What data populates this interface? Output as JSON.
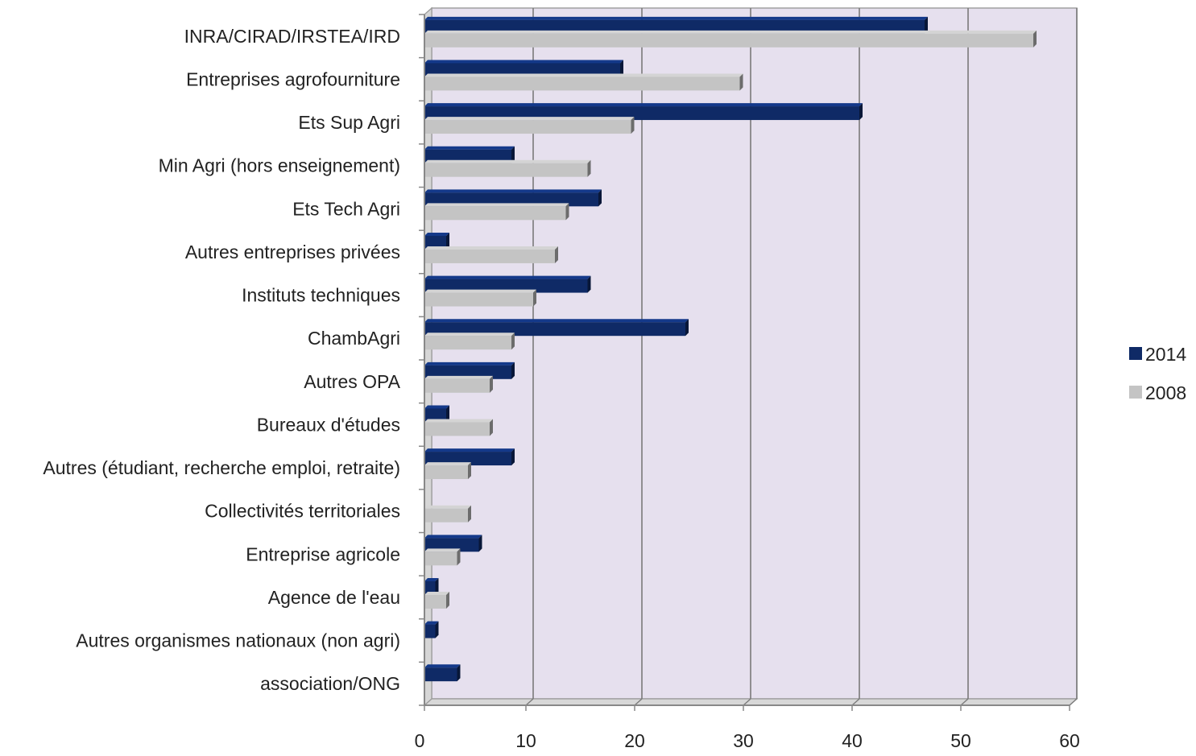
{
  "chart_data": {
    "type": "bar",
    "orientation": "horizontal",
    "categories": [
      "INRA/CIRAD/IRSTEA/IRD",
      "Entreprises agrofourniture",
      "Ets Sup Agri",
      "Min Agri (hors enseignement)",
      "Ets Tech Agri",
      "Autres entreprises privées",
      "Instituts techniques",
      "ChambAgri",
      "Autres OPA",
      "Bureaux d'études",
      "Autres (étudiant, recherche emploi, retraite)",
      "Collectivités territoriales",
      "Entreprise agricole",
      "Agence de l'eau",
      "Autres organismes nationaux (non agri)",
      "association/ONG"
    ],
    "series": [
      {
        "name": "2014",
        "color": "#0f2a66",
        "values": [
          46,
          18,
          40,
          8,
          16,
          2,
          15,
          24,
          8,
          2,
          8,
          0,
          5,
          1,
          1,
          3
        ]
      },
      {
        "name": "2008",
        "color": "#c4c4c4",
        "values": [
          56,
          29,
          19,
          15,
          13,
          12,
          10,
          8,
          6,
          6,
          4,
          4,
          3,
          2,
          0,
          0
        ]
      }
    ],
    "xlim": [
      0,
      60
    ],
    "xticks": [
      0,
      10,
      20,
      30,
      40,
      50,
      60
    ],
    "grid": true,
    "legend": "right",
    "background": "#e6e0ee"
  }
}
